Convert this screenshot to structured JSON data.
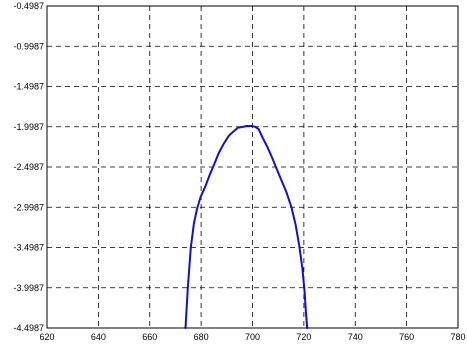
{
  "chart_data": {
    "type": "line",
    "title": "",
    "xlabel": "",
    "ylabel": "",
    "xlim": [
      620,
      780
    ],
    "ylim": [
      -4.4987,
      -0.4987
    ],
    "grid": true,
    "x_ticks": [
      620,
      640,
      660,
      680,
      700,
      720,
      740,
      760,
      780
    ],
    "x_tick_labels": [
      "620",
      "640",
      "660",
      "680",
      "700",
      "720",
      "740",
      "760",
      "780"
    ],
    "y_ticks": [
      -0.4987,
      -0.9987,
      -1.4987,
      -1.9987,
      -2.4987,
      -2.9987,
      -3.4987,
      -3.9987,
      -4.4987
    ],
    "y_tick_labels": [
      "-0.4987",
      "-0.9987",
      "-1.4987",
      "-1.9987",
      "-2.4987",
      "-2.9987",
      "-3.4987",
      "-3.9987",
      "-4.4987"
    ],
    "colors": {
      "series": "#1010d0",
      "grid": "#000000",
      "background": "#ffffff"
    },
    "series": [
      {
        "x": [
          673.9,
          674.8,
          676.0,
          677.2,
          678.4,
          679.8,
          681.5,
          683.2,
          685.0,
          686.8,
          688.8,
          690.8,
          692.5,
          694.3,
          696.2,
          697.8,
          699.6,
          701.2,
          702.4,
          704.0,
          705.8,
          707.6,
          709.4,
          711.2,
          713.2,
          715.2,
          716.8,
          718.2,
          719.4,
          720.3,
          720.8,
          721.3
        ],
        "y": [
          -4.4987,
          -4.0,
          -3.5,
          -3.2,
          -3.02,
          -2.87,
          -2.75,
          -2.61,
          -2.47,
          -2.33,
          -2.21,
          -2.11,
          -2.06,
          -2.01,
          -2.0,
          -1.99,
          -1.99,
          -2.0,
          -2.03,
          -2.14,
          -2.25,
          -2.38,
          -2.52,
          -2.66,
          -2.81,
          -3.0,
          -3.22,
          -3.48,
          -3.75,
          -4.05,
          -4.3,
          -4.4987
        ]
      }
    ]
  }
}
